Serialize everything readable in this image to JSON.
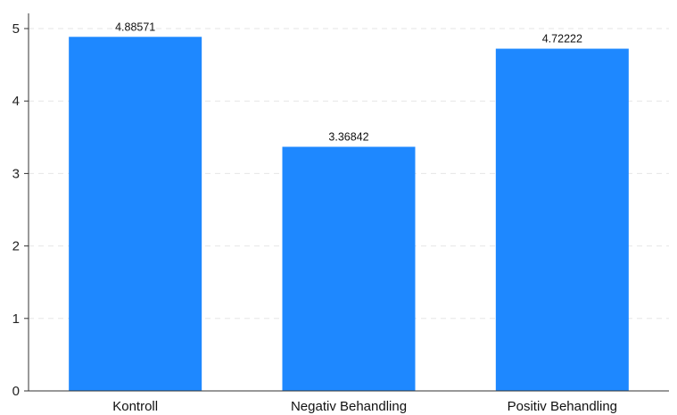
{
  "chart_data": {
    "type": "bar",
    "categories": [
      "Kontroll",
      "Negativ Behandling",
      "Positiv Behandling"
    ],
    "values": [
      4.88571,
      3.36842,
      4.72222
    ],
    "value_labels": [
      "4.88571",
      "3.36842",
      "4.72222"
    ],
    "title": "",
    "xlabel": "",
    "ylabel": "",
    "ylim": [
      0,
      5
    ],
    "yticks": [
      "0",
      "1",
      "2",
      "3",
      "4",
      "5"
    ],
    "grid": "horizontal-dashed",
    "legend": "none",
    "bar_color": "#1e88ff"
  }
}
